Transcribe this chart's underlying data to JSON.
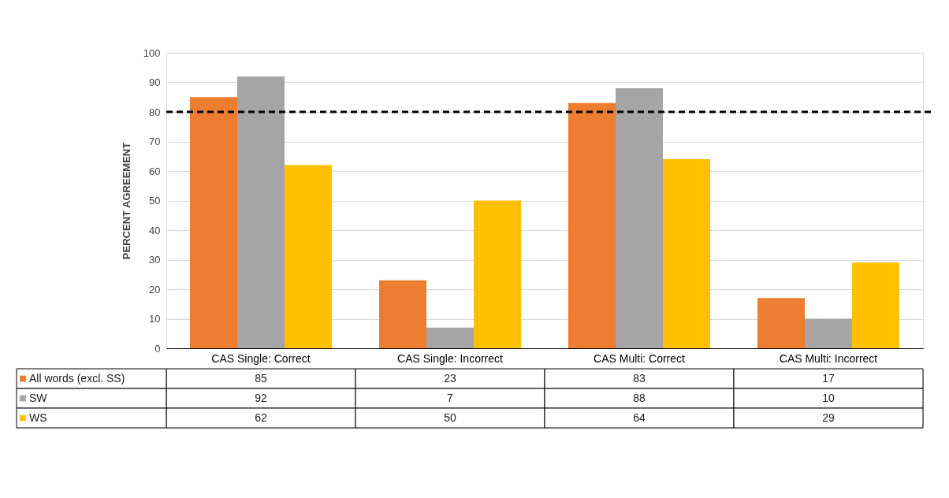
{
  "chart_data": {
    "type": "bar",
    "ylabel": "PERCENT AGREEMENT",
    "categories": [
      "CAS Single: Correct",
      "CAS Single: Incorrect",
      "CAS Multi: Correct",
      "CAS Multi: Incorrect"
    ],
    "series": [
      {
        "name": "All words (excl. SS)",
        "color": "#ed7d31",
        "values": [
          85,
          23,
          83,
          17
        ]
      },
      {
        "name": "SW",
        "color": "#a5a5a5",
        "values": [
          92,
          7,
          88,
          10
        ]
      },
      {
        "name": "WS",
        "color": "#ffc000",
        "values": [
          62,
          50,
          64,
          29
        ]
      }
    ],
    "ylim": [
      0,
      100
    ],
    "yticks": [
      0,
      10,
      20,
      30,
      40,
      50,
      60,
      70,
      80,
      90,
      100
    ],
    "grid": "y",
    "legend": "bottom",
    "data_labels": true,
    "ref_lines": [
      {
        "axis": "y",
        "value": 80,
        "color": "#000000",
        "line_style": "dashed"
      }
    ]
  }
}
